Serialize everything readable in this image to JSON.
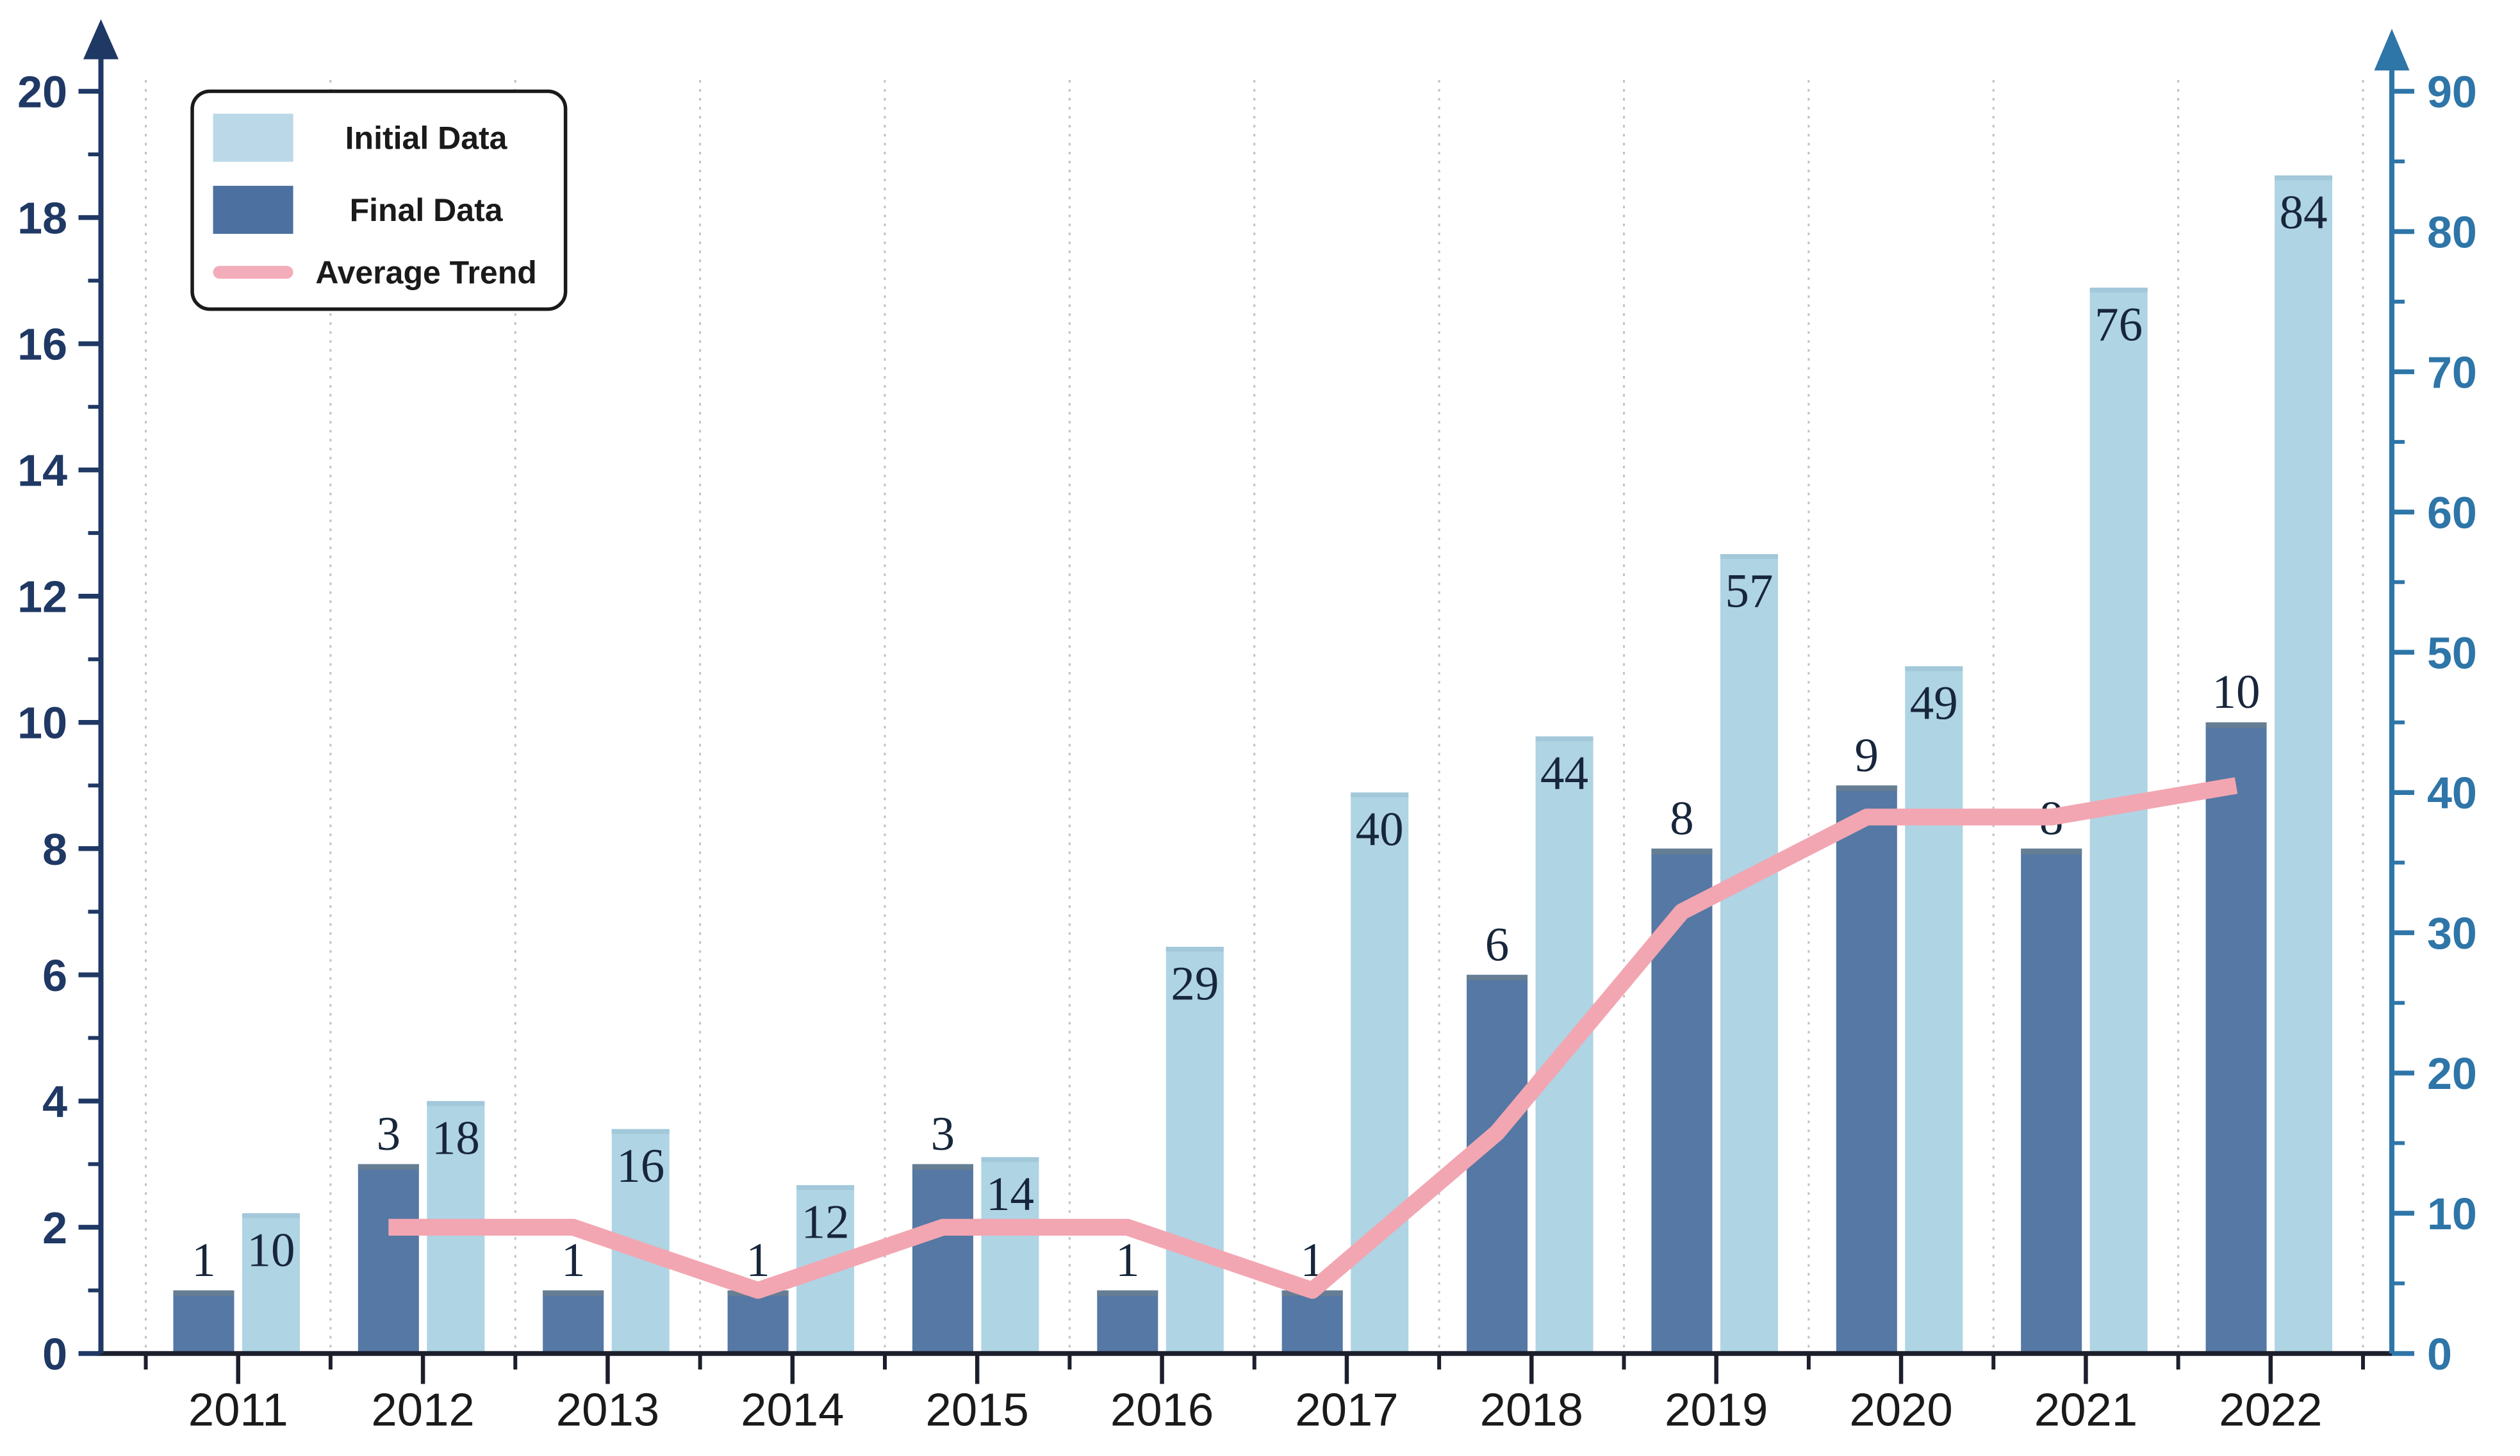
{
  "chart_data": {
    "type": "bar+line",
    "title": "",
    "categories": [
      "2011",
      "2012",
      "2013",
      "2014",
      "2015",
      "2016",
      "2017",
      "2018",
      "2019",
      "2020",
      "2021",
      "2022"
    ],
    "series": [
      {
        "name": "Initial Data",
        "type": "bar",
        "axis": "right",
        "color": "#AFD4E4",
        "cap_color": "#A2C8DA",
        "values": [
          10,
          18,
          16,
          12,
          14,
          29,
          40,
          44,
          57,
          49,
          76,
          84
        ],
        "label_position": "inside-top"
      },
      {
        "name": "Final Data",
        "type": "bar",
        "axis": "left",
        "color": "#5578A4",
        "cap_color": "#667E93",
        "values": [
          1,
          3,
          1,
          1,
          3,
          1,
          1,
          6,
          8,
          9,
          8,
          10
        ],
        "label_position": "above"
      },
      {
        "name": "Average Trend",
        "type": "line",
        "axis": "left",
        "color": "#F2A6B1",
        "x": [
          "2012",
          "2013",
          "2014",
          "2015",
          "2016",
          "2017",
          "2018",
          "2019",
          "2020",
          "2021",
          "2022"
        ],
        "values": [
          2,
          2,
          1,
          2,
          2,
          1,
          3.5,
          7,
          8.5,
          8.5,
          9
        ]
      }
    ],
    "axes": {
      "left": {
        "min": 0,
        "max": 20,
        "tick_step": 2,
        "minor_step": 1,
        "color": "#1F3864",
        "tick_labels": [
          "0",
          "2",
          "4",
          "6",
          "8",
          "10",
          "12",
          "14",
          "16",
          "18",
          "20"
        ]
      },
      "right": {
        "min": 0,
        "max": 90,
        "tick_step": 10,
        "minor_step": 5,
        "color": "#2E75A8",
        "tick_labels": [
          "0",
          "10",
          "20",
          "30",
          "40",
          "50",
          "60",
          "70",
          "80",
          "90"
        ]
      },
      "bottom": {
        "color": "#1C1F2B",
        "label_color": "#1A1A1A"
      }
    },
    "legend": {
      "position": "top-left",
      "border_color": "#1A1A1A",
      "entries": [
        {
          "label": "Initial Data",
          "swatch": "rect",
          "color": "#BAD8E8"
        },
        {
          "label": "Final Data",
          "swatch": "rect",
          "color": "#4C70A0"
        },
        {
          "label": "Average Trend",
          "swatch": "line",
          "color": "#F3ACB9"
        }
      ]
    },
    "grid": {
      "vertical_dotted": true,
      "color": "#C2C2C2"
    },
    "bar_label_color": "#17263B",
    "background": "#FFFFFF",
    "ylim_left": [
      0,
      20
    ],
    "ylim_right": [
      0,
      90
    ],
    "legend_labels": [
      "Initial Data",
      "Final Data",
      "Average Trend"
    ]
  }
}
